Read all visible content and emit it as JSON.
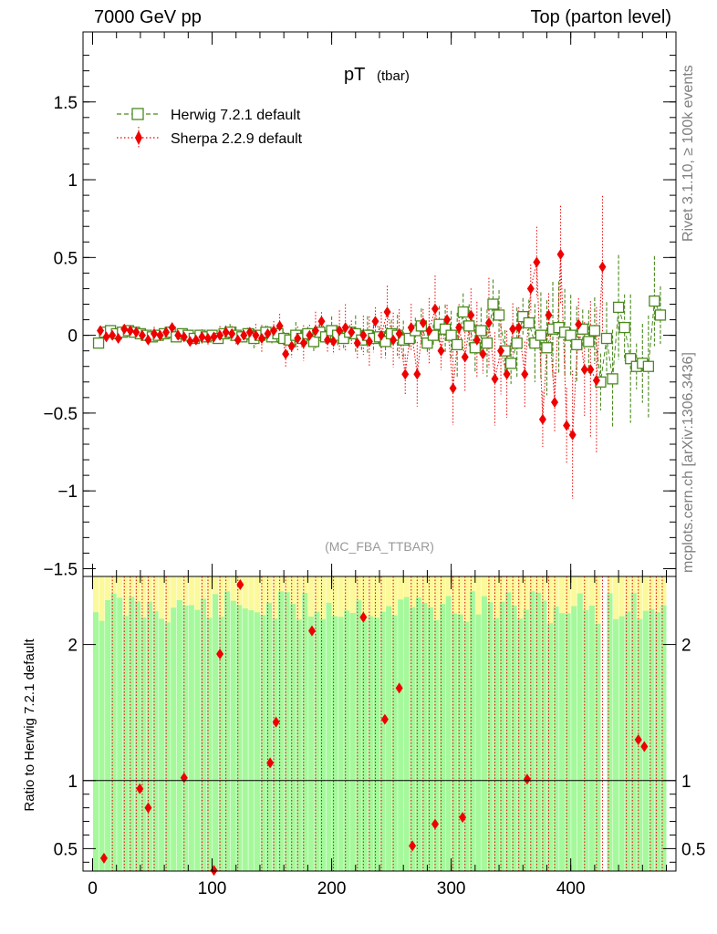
{
  "header": {
    "left": "7000 GeV pp",
    "right": "Top (parton level)"
  },
  "side_labels": {
    "rivet": "Rivet 3.1.10, ≥ 100k events",
    "site": "mcplots.cern.ch [arXiv:1306.3436]"
  },
  "chart_data": [
    {
      "type": "scatter",
      "title": "pT",
      "title_sub": "(tbar)",
      "watermark": "(MC_FBA_TTBAR)",
      "xlim": [
        -8,
        488
      ],
      "ylim": [
        -1.55,
        1.95
      ],
      "yticks": [
        -1.5,
        -1,
        -0.5,
        0,
        0.5,
        1,
        1.5
      ],
      "ytick_labels": [
        "−1.5",
        "−1",
        "−0.5",
        "0",
        "0.5",
        "1",
        "1.5"
      ],
      "legend_position": "top-left",
      "series": [
        {
          "name": "Herwig 7.2.1 default",
          "color": "#4a8a1e",
          "marker": "open-square",
          "linestyle": "dashed",
          "points": [
            [
              5,
              -0.05
            ],
            [
              10,
              0.02
            ],
            [
              15,
              0.03
            ],
            [
              20,
              0.01
            ],
            [
              25,
              0.02
            ],
            [
              30,
              0.03
            ],
            [
              35,
              0.02
            ],
            [
              40,
              0.01
            ],
            [
              45,
              0.0
            ],
            [
              50,
              -0.01
            ],
            [
              55,
              0.0
            ],
            [
              60,
              0.01
            ],
            [
              65,
              0.02
            ],
            [
              70,
              -0.01
            ],
            [
              75,
              0.01
            ],
            [
              80,
              0.0
            ],
            [
              85,
              -0.02
            ],
            [
              90,
              0.0
            ],
            [
              95,
              -0.01
            ],
            [
              100,
              0.0
            ],
            [
              105,
              -0.02
            ],
            [
              110,
              0.01
            ],
            [
              115,
              0.02
            ],
            [
              120,
              0.0
            ],
            [
              125,
              -0.01
            ],
            [
              130,
              0.01
            ],
            [
              135,
              -0.02
            ],
            [
              140,
              0.0
            ],
            [
              145,
              0.02
            ],
            [
              150,
              -0.01
            ],
            [
              155,
              0.01
            ],
            [
              160,
              -0.02
            ],
            [
              165,
              -0.03
            ],
            [
              170,
              0.0
            ],
            [
              175,
              -0.02
            ],
            [
              180,
              0.01
            ],
            [
              185,
              -0.04
            ],
            [
              190,
              0.02
            ],
            [
              195,
              -0.01
            ],
            [
              200,
              0.03
            ],
            [
              205,
              0.0
            ],
            [
              210,
              -0.02
            ],
            [
              215,
              0.02
            ],
            [
              220,
              0.01
            ],
            [
              225,
              -0.03
            ],
            [
              230,
              0.0
            ],
            [
              235,
              -0.02
            ],
            [
              240,
              -0.01
            ],
            [
              245,
              -0.04
            ],
            [
              250,
              0.01
            ],
            [
              255,
              0.0
            ],
            [
              260,
              -0.03
            ],
            [
              265,
              -0.02
            ],
            [
              270,
              0.03
            ],
            [
              275,
              0.06
            ],
            [
              280,
              -0.05
            ],
            [
              285,
              0.0
            ],
            [
              290,
              0.07
            ],
            [
              295,
              0.04
            ],
            [
              300,
              0.0
            ],
            [
              305,
              -0.06
            ],
            [
              310,
              0.15
            ],
            [
              315,
              0.06
            ],
            [
              320,
              -0.08
            ],
            [
              325,
              0.03
            ],
            [
              330,
              -0.05
            ],
            [
              335,
              0.2
            ],
            [
              340,
              0.13
            ],
            [
              345,
              -0.1
            ],
            [
              350,
              -0.18
            ],
            [
              355,
              -0.05
            ],
            [
              360,
              0.12
            ],
            [
              365,
              0.08
            ],
            [
              370,
              -0.05
            ],
            [
              375,
              0.0
            ],
            [
              380,
              -0.08
            ],
            [
              385,
              0.04
            ],
            [
              390,
              0.05
            ],
            [
              395,
              0.02
            ],
            [
              400,
              0.0
            ],
            [
              405,
              -0.06
            ],
            [
              410,
              0.04
            ],
            [
              415,
              -0.04
            ],
            [
              420,
              0.03
            ],
            [
              425,
              -0.3
            ],
            [
              430,
              -0.02
            ],
            [
              435,
              -0.28
            ],
            [
              440,
              0.18
            ],
            [
              445,
              0.05
            ],
            [
              450,
              -0.15
            ],
            [
              455,
              -0.2
            ],
            [
              460,
              -0.18
            ],
            [
              465,
              -0.2
            ],
            [
              470,
              0.22
            ],
            [
              475,
              0.13
            ]
          ]
        },
        {
          "name": "Sherpa 2.2.9 default",
          "color": "#ee0000",
          "marker": "filled-diamond",
          "linestyle": "dotted",
          "points": [
            [
              5,
              0.03
            ],
            [
              10,
              -0.01
            ],
            [
              15,
              0.0
            ],
            [
              20,
              -0.02
            ],
            [
              25,
              0.04
            ],
            [
              30,
              0.03
            ],
            [
              35,
              0.02
            ],
            [
              40,
              0.0
            ],
            [
              45,
              -0.03
            ],
            [
              50,
              0.01
            ],
            [
              55,
              0.0
            ],
            [
              60,
              0.02
            ],
            [
              65,
              0.05
            ],
            [
              70,
              0.0
            ],
            [
              75,
              -0.01
            ],
            [
              80,
              -0.04
            ],
            [
              85,
              -0.03
            ],
            [
              90,
              -0.01
            ],
            [
              95,
              -0.02
            ],
            [
              100,
              -0.01
            ],
            [
              105,
              0.0
            ],
            [
              110,
              0.02
            ],
            [
              115,
              0.01
            ],
            [
              120,
              -0.03
            ],
            [
              125,
              0.0
            ],
            [
              130,
              0.02
            ],
            [
              135,
              0.0
            ],
            [
              140,
              -0.02
            ],
            [
              145,
              0.01
            ],
            [
              150,
              0.03
            ],
            [
              155,
              0.06
            ],
            [
              160,
              -0.12
            ],
            [
              165,
              -0.07
            ],
            [
              170,
              -0.02
            ],
            [
              175,
              -0.05
            ],
            [
              180,
              0.0
            ],
            [
              185,
              0.03
            ],
            [
              190,
              0.09
            ],
            [
              195,
              -0.03
            ],
            [
              200,
              -0.04
            ],
            [
              205,
              0.03
            ],
            [
              210,
              0.05
            ],
            [
              215,
              0.02
            ],
            [
              220,
              -0.05
            ],
            [
              225,
              0.0
            ],
            [
              230,
              -0.04
            ],
            [
              235,
              0.09
            ],
            [
              240,
              0.0
            ],
            [
              245,
              0.15
            ],
            [
              250,
              -0.03
            ],
            [
              255,
              0.01
            ],
            [
              260,
              -0.25
            ],
            [
              265,
              0.05
            ],
            [
              270,
              -0.25
            ],
            [
              275,
              0.08
            ],
            [
              280,
              0.03
            ],
            [
              285,
              0.17
            ],
            [
              290,
              -0.1
            ],
            [
              295,
              0.1
            ],
            [
              300,
              -0.34
            ],
            [
              305,
              0.05
            ],
            [
              310,
              -0.14
            ],
            [
              315,
              0.13
            ],
            [
              320,
              -0.03
            ],
            [
              325,
              -0.12
            ],
            [
              330,
              0.08
            ],
            [
              335,
              -0.28
            ],
            [
              340,
              -0.1
            ],
            [
              345,
              -0.25
            ],
            [
              350,
              0.04
            ],
            [
              355,
              0.05
            ],
            [
              360,
              -0.25
            ],
            [
              365,
              0.3
            ],
            [
              370,
              0.47
            ],
            [
              375,
              -0.54
            ],
            [
              380,
              0.13
            ],
            [
              385,
              -0.43
            ],
            [
              390,
              0.52
            ],
            [
              395,
              -0.58
            ],
            [
              400,
              -0.64
            ],
            [
              405,
              0.07
            ],
            [
              410,
              -0.22
            ],
            [
              415,
              -0.22
            ],
            [
              420,
              -0.29
            ],
            [
              425,
              0.44
            ]
          ]
        }
      ]
    },
    {
      "type": "scatter",
      "ylabel": "Ratio to Herwig 7.2.1 default",
      "xlim": [
        -8,
        488
      ],
      "ylim": [
        0.335,
        2.5
      ],
      "yticks": [
        0.5,
        1,
        2
      ],
      "ytick_labels": [
        "0.5",
        "1",
        "2"
      ],
      "xticks": [
        0,
        100,
        200,
        300,
        400
      ],
      "xtick_labels": [
        "0",
        "100",
        "200",
        "300",
        "400"
      ],
      "reference_line": 1,
      "band_colors": {
        "inner": "#a5f99b",
        "outer": "#fcf99b"
      },
      "sherpa_ratio_points": [
        [
          8,
          0.43
        ],
        [
          38,
          0.94
        ],
        [
          45,
          0.8
        ],
        [
          75,
          1.02
        ],
        [
          100,
          0.34
        ],
        [
          105,
          1.93
        ],
        [
          122,
          2.44
        ],
        [
          147,
          1.13
        ],
        [
          152,
          1.43
        ],
        [
          182,
          2.1
        ],
        [
          225,
          2.2
        ],
        [
          243,
          1.45
        ],
        [
          255,
          1.68
        ],
        [
          266,
          0.52
        ],
        [
          285,
          0.68
        ],
        [
          308,
          0.73
        ],
        [
          362,
          1.01
        ],
        [
          455,
          1.3
        ],
        [
          460,
          1.25
        ]
      ]
    }
  ]
}
